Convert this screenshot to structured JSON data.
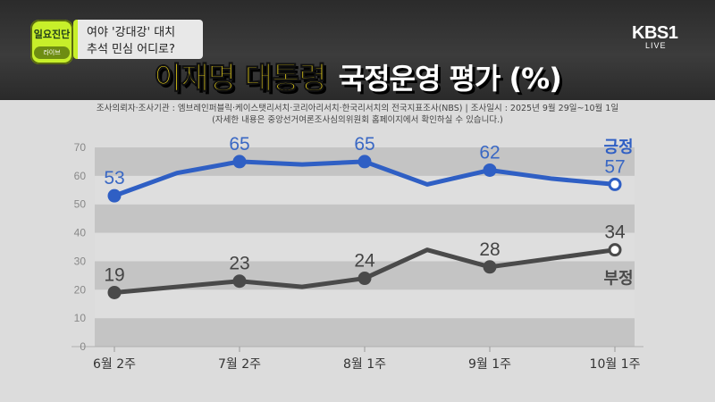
{
  "program": {
    "badge": "일요진단",
    "badge_sub": "라이브"
  },
  "topic": {
    "line1": "여야 '강대강' 대치",
    "line2": "추석 민심 어디로?"
  },
  "broadcaster": {
    "logo": "KBS",
    "channel": "1",
    "live": "LIVE"
  },
  "title": {
    "part1": "이재명 대통령",
    "part2": "국정운영 평가 (%)"
  },
  "source": {
    "line1": "조사의뢰자·조사기관 : 엠브레인퍼블릭·케이스탯리서치·코리아리서치·한국리서치의 전국지표조사(NBS) | 조사일시 : 2025년 9월 29일~10월 1일",
    "line2": "(자세한 내용은 중앙선거여론조사심의위원회 홈페이지에서 확인하실 수 있습니다.)"
  },
  "chart_data": {
    "type": "line",
    "ylim": [
      0,
      70
    ],
    "yticks": [
      "0",
      "10",
      "20",
      "30",
      "40",
      "50",
      "60",
      "70"
    ],
    "x_tick_labels": [
      "6월 2주",
      "7월 2주",
      "8월 1주",
      "9월 1주",
      "10월 1주"
    ],
    "x_tick_positions": [
      0,
      4,
      8,
      12,
      16
    ],
    "grid": "banded",
    "series": [
      {
        "name": "긍정",
        "color": "#2f5fc4",
        "values": [
          53,
          61,
          65,
          64,
          65,
          57,
          62,
          59,
          57
        ],
        "x": [
          0,
          2,
          4,
          6,
          8,
          10,
          12,
          14,
          16
        ],
        "labels": [
          {
            "x": 0,
            "text": "53"
          },
          {
            "x": 4,
            "text": "65"
          },
          {
            "x": 8,
            "text": "65"
          },
          {
            "x": 12,
            "text": "62"
          },
          {
            "x": 16,
            "text": "57"
          }
        ],
        "markers": [
          0,
          4,
          8,
          12,
          16
        ]
      },
      {
        "name": "부정",
        "color": "#4a4a4a",
        "values": [
          19,
          23,
          21,
          24,
          34,
          28,
          34
        ],
        "x": [
          0,
          4,
          6,
          8,
          10,
          12,
          16
        ],
        "labels": [
          {
            "x": 0,
            "text": "19"
          },
          {
            "x": 4,
            "text": "23"
          },
          {
            "x": 8,
            "text": "24"
          },
          {
            "x": 12,
            "text": "28"
          },
          {
            "x": 16,
            "text": "34"
          }
        ],
        "markers": [
          0,
          4,
          8,
          12,
          16
        ]
      }
    ]
  }
}
